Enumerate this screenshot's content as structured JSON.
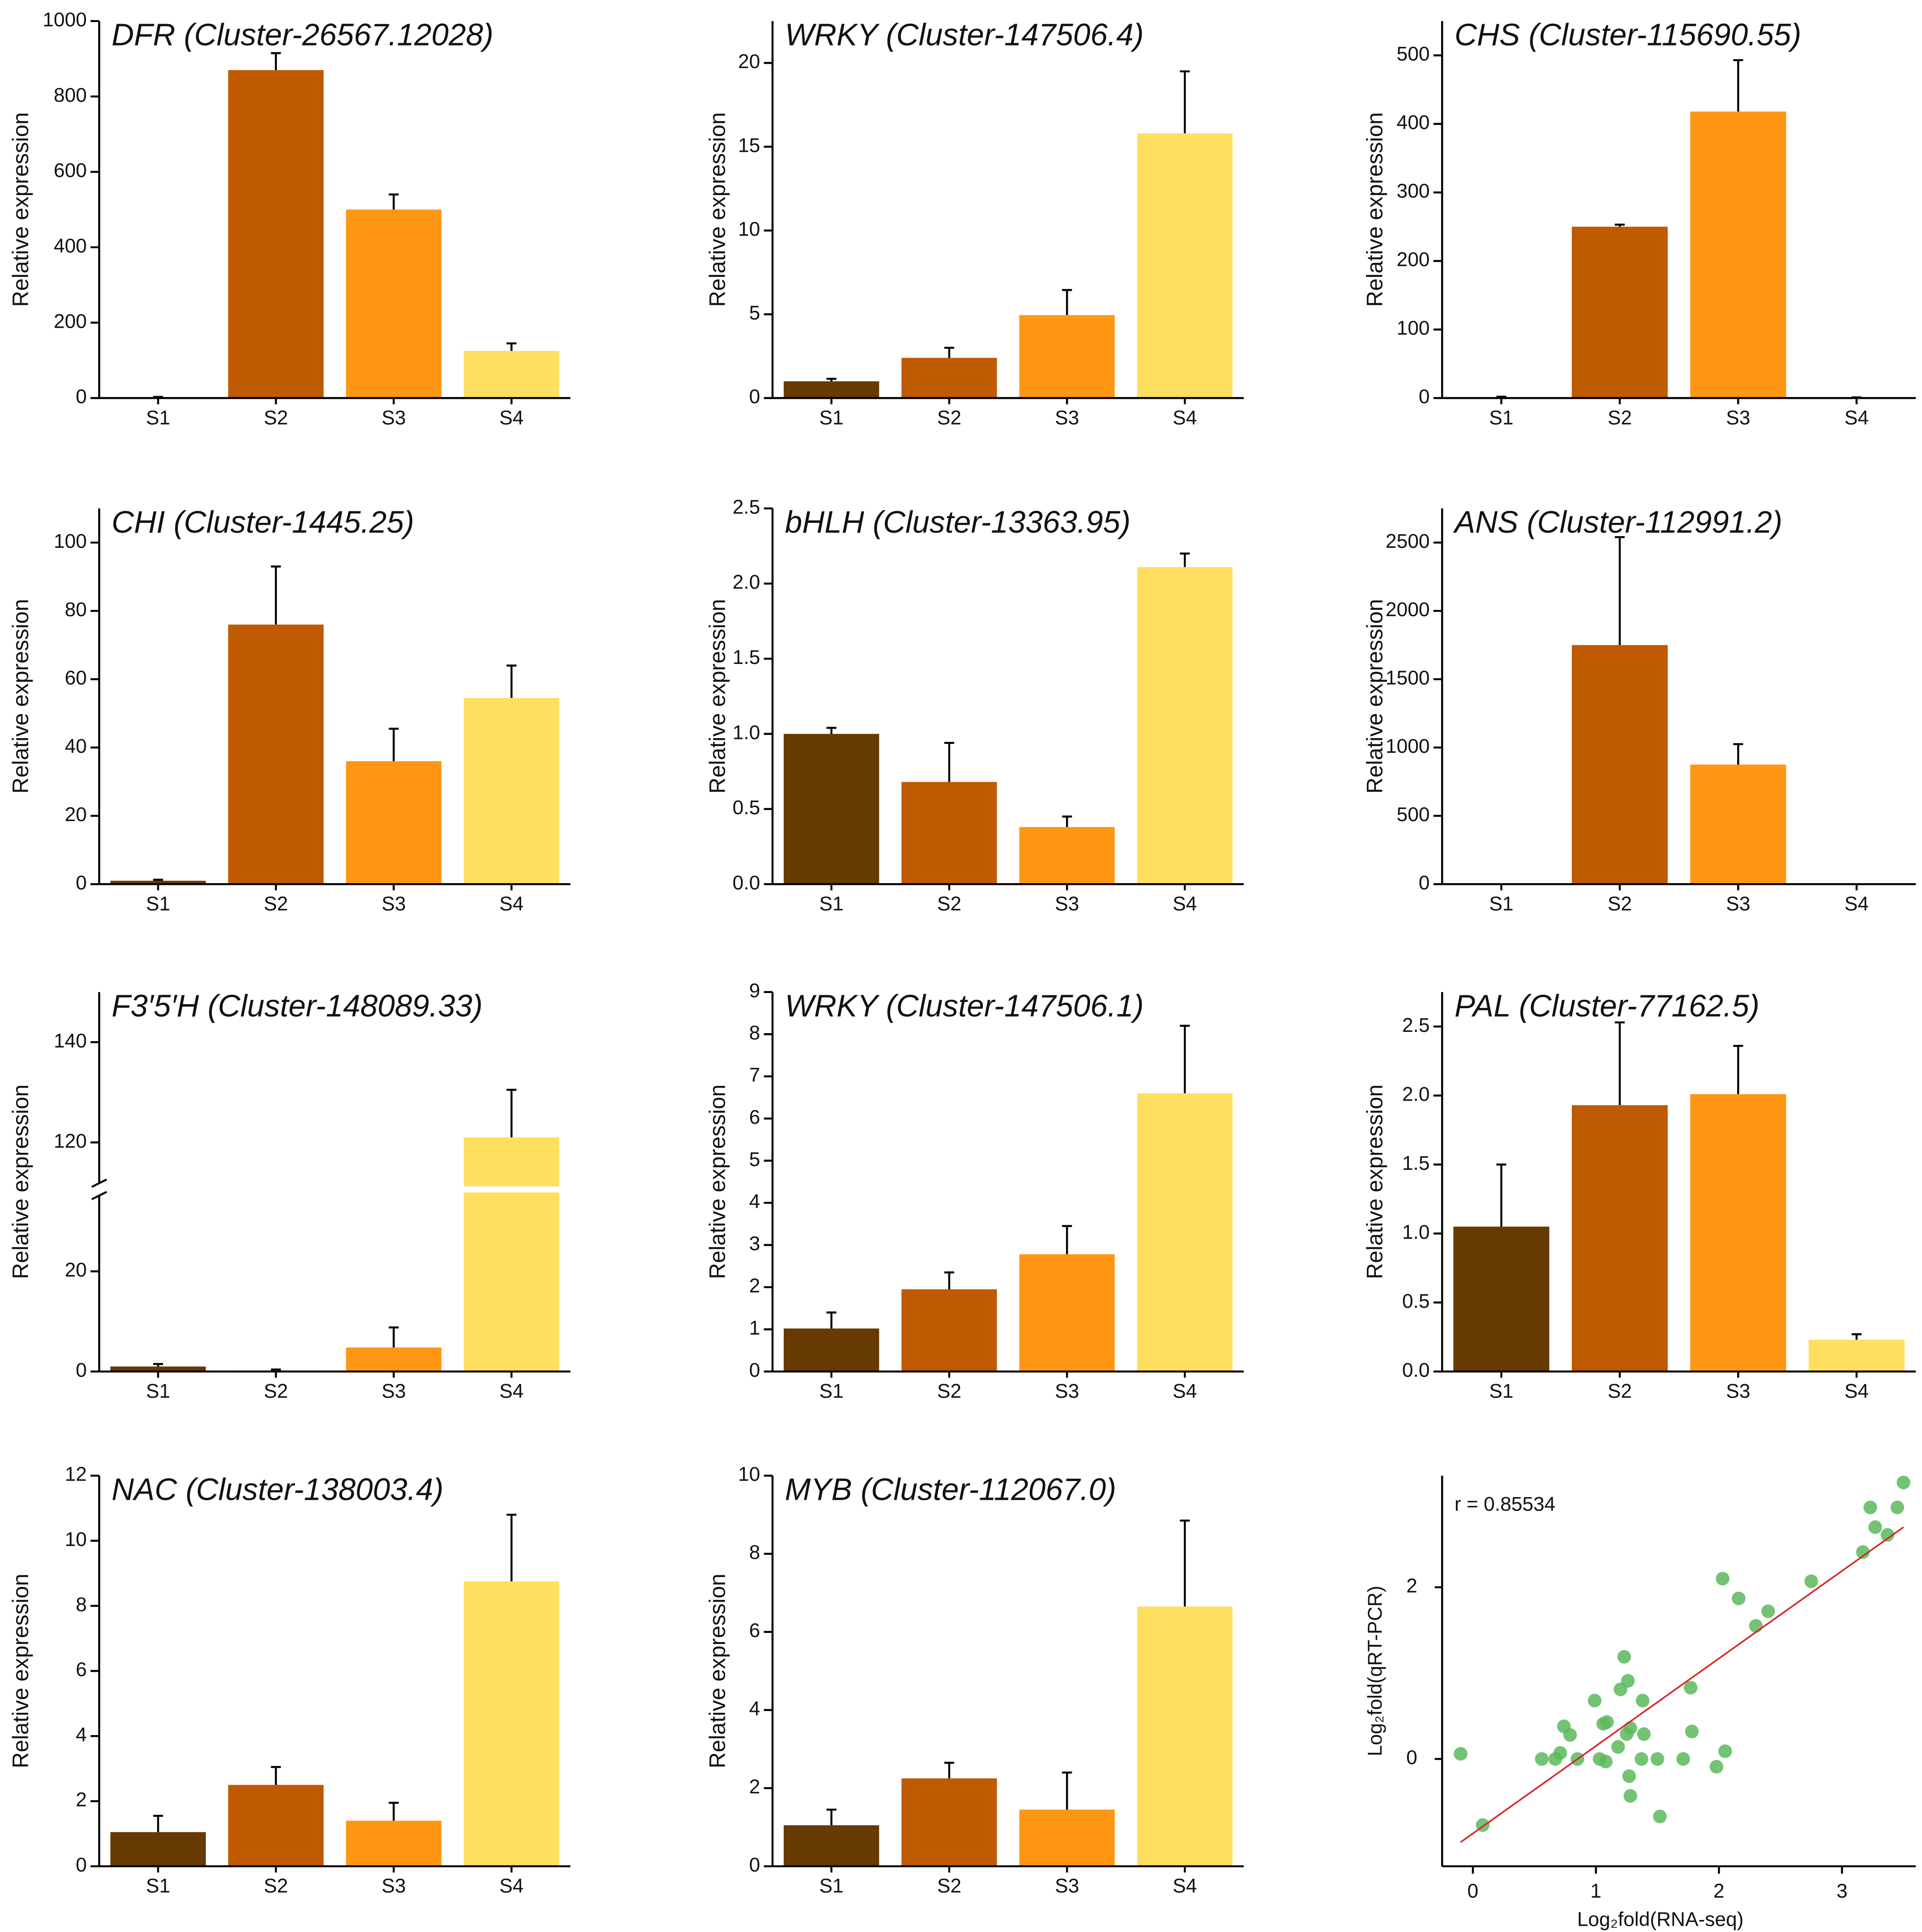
{
  "chart_data": [
    {
      "type": "bar",
      "title": "DFR  (Cluster-26567.12028)",
      "ylabel": "Relative expression",
      "categories": [
        "S1",
        "S2",
        "S3",
        "S4"
      ],
      "values": [
        1,
        870,
        500,
        125
      ],
      "errors": [
        2,
        45,
        40,
        20
      ],
      "colors": [
        "#663a00",
        "#bf5a00",
        "#ff9614",
        "#ffdf5f"
      ],
      "ylim": [
        0,
        1000
      ],
      "yticks": [
        0,
        200,
        400,
        600,
        800,
        1000
      ]
    },
    {
      "type": "bar",
      "title": "WRKY  (Cluster-147506.4)",
      "ylabel": "Relative expression",
      "categories": [
        "S1",
        "S2",
        "S3",
        "S4"
      ],
      "values": [
        1,
        2.4,
        4.95,
        15.8
      ],
      "errors": [
        0.15,
        0.6,
        1.5,
        3.7
      ],
      "colors": [
        "#663a00",
        "#bf5a00",
        "#ff9614",
        "#ffdf5f"
      ],
      "ylim": [
        0,
        22.5
      ],
      "yticks": [
        0,
        5,
        10,
        15,
        20
      ]
    },
    {
      "type": "bar",
      "title": "CHS  (Cluster-115690.55)",
      "ylabel": "Relative expression",
      "categories": [
        "S1",
        "S2",
        "S3",
        "S4"
      ],
      "values": [
        1,
        250,
        418,
        0.5
      ],
      "errors": [
        1,
        3,
        75,
        0.5
      ],
      "colors": [
        "#663a00",
        "#bf5a00",
        "#ff9614",
        "#ffdf5f"
      ],
      "ylim": [
        0,
        550
      ],
      "yticks": [
        0,
        100,
        200,
        300,
        400,
        500
      ]
    },
    {
      "type": "bar",
      "title": "CHI  (Cluster-1445.25)",
      "ylabel": "Relative expression",
      "categories": [
        "S1",
        "S2",
        "S3",
        "S4"
      ],
      "values": [
        1,
        76,
        36,
        54.5
      ],
      "errors": [
        0.3,
        17,
        9.5,
        9.5
      ],
      "colors": [
        "#663a00",
        "#bf5a00",
        "#ff9614",
        "#ffdf5f"
      ],
      "ylim": [
        0,
        110
      ],
      "yticks": [
        0,
        20,
        40,
        60,
        80,
        100
      ]
    },
    {
      "type": "bar",
      "title": "bHLH  (Cluster-13363.95)",
      "ylabel": "Relative expression",
      "categories": [
        "S1",
        "S2",
        "S3",
        "S4"
      ],
      "values": [
        1.0,
        0.68,
        0.38,
        2.11
      ],
      "errors": [
        0.04,
        0.26,
        0.07,
        0.09
      ],
      "colors": [
        "#663a00",
        "#bf5a00",
        "#ff9614",
        "#ffdf5f"
      ],
      "ylim": [
        0,
        2.5
      ],
      "yticks": [
        {
          "value": 0,
          "label": "0.0"
        },
        {
          "value": 0.5,
          "label": "0.5"
        },
        {
          "value": 1,
          "label": "1.0"
        },
        {
          "value": 1.5,
          "label": "1.5"
        },
        {
          "value": 2,
          "label": "2.0"
        },
        {
          "value": 2.5,
          "label": "2.5"
        }
      ]
    },
    {
      "type": "bar",
      "title": "ANS  (Cluster-112991.2)",
      "ylabel": "Relative expression",
      "categories": [
        "S1",
        "S2",
        "S3",
        "S4"
      ],
      "values": [
        0,
        1750,
        875,
        0
      ],
      "errors": [
        0,
        790,
        150,
        0
      ],
      "colors": [
        "#663a00",
        "#bf5a00",
        "#ff9614",
        "#ffdf5f"
      ],
      "ylim": [
        0,
        2750
      ],
      "yticks": [
        0,
        500,
        1000,
        1500,
        2000,
        2500
      ]
    },
    {
      "type": "bar",
      "title": "F3′5′H  (Cluster-148089.33)",
      "ylabel": "Relative expression",
      "categories": [
        "S1",
        "S2",
        "S3",
        "S4"
      ],
      "values": [
        1,
        0.2,
        4.8,
        121
      ],
      "errors": [
        0.5,
        0.2,
        4,
        9.5
      ],
      "colors": [
        "#663a00",
        "#bf5a00",
        "#ff9614",
        "#ffdf5f"
      ],
      "ylim": [
        0,
        150
      ],
      "ybreak": [
        36,
        111
      ],
      "yticks": [
        0,
        20,
        120,
        140
      ]
    },
    {
      "type": "bar",
      "title": "WRKY  (Cluster-147506.1)",
      "ylabel": "Relative expression",
      "categories": [
        "S1",
        "S2",
        "S3",
        "S4"
      ],
      "values": [
        1.02,
        1.95,
        2.78,
        6.6
      ],
      "errors": [
        0.38,
        0.4,
        0.67,
        1.6
      ],
      "colors": [
        "#663a00",
        "#bf5a00",
        "#ff9614",
        "#ffdf5f"
      ],
      "ylim": [
        0,
        9
      ],
      "yticks": [
        0,
        1,
        2,
        3,
        4,
        5,
        6,
        7,
        8,
        9
      ]
    },
    {
      "type": "bar",
      "title": "PAL  (Cluster-77162.5)",
      "ylabel": "Relative expression",
      "categories": [
        "S1",
        "S2",
        "S3",
        "S4"
      ],
      "values": [
        1.05,
        1.93,
        2.01,
        0.23
      ],
      "errors": [
        0.45,
        0.6,
        0.35,
        0.04
      ],
      "colors": [
        "#663a00",
        "#bf5a00",
        "#ff9614",
        "#ffdf5f"
      ],
      "ylim": [
        0,
        2.75
      ],
      "yticks": [
        {
          "value": 0,
          "label": "0.0"
        },
        {
          "value": 0.5,
          "label": "0.5"
        },
        {
          "value": 1,
          "label": "1.0"
        },
        {
          "value": 1.5,
          "label": "1.5"
        },
        {
          "value": 2,
          "label": "2.0"
        },
        {
          "value": 2.5,
          "label": "2.5"
        }
      ]
    },
    {
      "type": "bar",
      "title": "NAC  (Cluster-138003.4)",
      "ylabel": "Relative expression",
      "categories": [
        "S1",
        "S2",
        "S3",
        "S4"
      ],
      "values": [
        1.05,
        2.5,
        1.4,
        8.75
      ],
      "errors": [
        0.5,
        0.55,
        0.55,
        2.05
      ],
      "colors": [
        "#663a00",
        "#bf5a00",
        "#ff9614",
        "#ffdf5f"
      ],
      "ylim": [
        0,
        12
      ],
      "yticks": [
        0,
        2,
        4,
        6,
        8,
        10,
        12
      ]
    },
    {
      "type": "bar",
      "title": "MYB  (Cluster-112067.0)",
      "ylabel": "Relative expression",
      "categories": [
        "S1",
        "S2",
        "S3",
        "S4"
      ],
      "values": [
        1.05,
        2.25,
        1.45,
        6.65
      ],
      "errors": [
        0.4,
        0.4,
        0.95,
        2.2
      ],
      "colors": [
        "#663a00",
        "#bf5a00",
        "#ff9614",
        "#ffdf5f"
      ],
      "ylim": [
        0,
        10
      ],
      "yticks": [
        0,
        2,
        4,
        6,
        8,
        10
      ]
    },
    {
      "type": "scatter",
      "annotation": "r = 0.85534",
      "xlabel": "Log₂fold(RNA-seq)",
      "ylabel": "Log₂fold(qRT-PCR)",
      "color": "#5cb85c",
      "line_color": "#d62728",
      "x": [
        -0.1,
        0.08,
        0.56,
        0.67,
        0.71,
        0.74,
        0.79,
        0.85,
        0.99,
        1.03,
        1.06,
        1.09,
        1.08,
        1.18,
        1.2,
        1.23,
        1.26,
        1.25,
        1.28,
        1.27,
        1.28,
        1.37,
        1.38,
        1.39,
        1.5,
        1.52,
        1.71,
        1.77,
        1.78,
        1.98,
        2.05,
        2.03,
        2.16,
        2.3,
        2.4,
        2.75,
        3.17,
        3.23,
        3.27,
        3.37,
        3.45,
        3.5
      ],
      "y": [
        0.06,
        -0.77,
        0,
        0,
        0.07,
        0.38,
        0.28,
        0,
        0.68,
        0,
        0.41,
        0.43,
        -0.03,
        0.14,
        0.81,
        1.19,
        0.91,
        0.29,
        0.36,
        -0.2,
        -0.43,
        0,
        0.68,
        0.29,
        0,
        -0.67,
        0,
        0.83,
        0.32,
        -0.09,
        0.09,
        2.1,
        1.87,
        1.55,
        1.72,
        2.07,
        2.41,
        2.93,
        2.7,
        2.61,
        2.93,
        3.22
      ],
      "fit": {
        "x": [
          -0.1,
          3.5
        ],
        "y": [
          -0.97,
          2.7
        ]
      },
      "xlim": [
        -0.25,
        3.6
      ],
      "ylim": [
        -1.25,
        3.3
      ],
      "xticks": [
        0,
        1,
        2,
        3
      ],
      "yticks": [
        0,
        2
      ]
    }
  ]
}
